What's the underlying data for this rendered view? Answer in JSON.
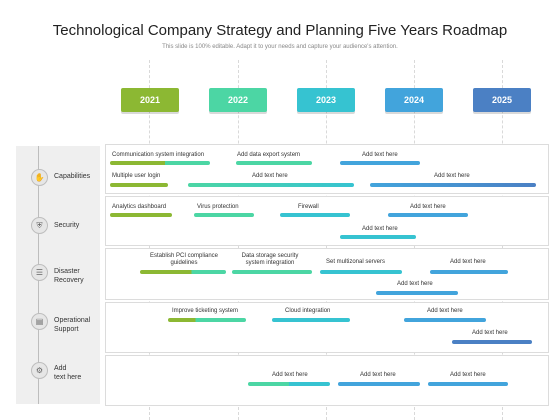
{
  "title": "Technological Company Strategy and Planning Five Years Roadmap",
  "subtitle": "This slide is 100% editable. Adapt it to your needs and capture your audience's attention.",
  "colors": {
    "green": "#8cb833",
    "mint": "#4cd6a4",
    "teal": "#36c3d1",
    "blue": "#42a4dc",
    "navy": "#4b80c4"
  },
  "years": [
    {
      "label": "2021",
      "color": "#8cb833"
    },
    {
      "label": "2022",
      "color": "#4cd6a4"
    },
    {
      "label": "2023",
      "color": "#36c3d1"
    },
    {
      "label": "2024",
      "color": "#42a4dc"
    },
    {
      "label": "2025",
      "color": "#4b80c4"
    }
  ],
  "categories": [
    {
      "label": "Capabilities",
      "icon": "hand-icon"
    },
    {
      "label": "Security",
      "icon": "shield-icon"
    },
    {
      "label": "Disaster\nRecovery",
      "icon": "server-icon"
    },
    {
      "label": "Operational\nSupport",
      "icon": "document-icon"
    },
    {
      "label": "Add\ntext here",
      "icon": "gear-icon"
    }
  ],
  "tasks": {
    "cap_comm": "Communication system integration",
    "cap_export": "Add data export system",
    "cap_add1": "Add text here",
    "cap_login": "Multiple user login",
    "cap_add2": "Add text here",
    "cap_add3": "Add text here",
    "sec_analytics": "Analytics dashboard",
    "sec_virus": "Virus protection",
    "sec_firewall": "Firewall",
    "sec_add1": "Add text here",
    "sec_add2": "Add text here",
    "dr_pci": "Establish PCI compliance guidelines",
    "dr_storage": "Data storage security system integration",
    "dr_servers": "Set multizonal servers",
    "dr_add1": "Add text here",
    "dr_add2": "Add text here",
    "op_ticket": "Improve ticketing system",
    "op_cloud": "Cloud integration",
    "op_add1": "Add text here",
    "op_add2": "Add text here",
    "ad_add1": "Add text here",
    "ad_add2": "Add text here",
    "ad_add3": "Add text here"
  }
}
